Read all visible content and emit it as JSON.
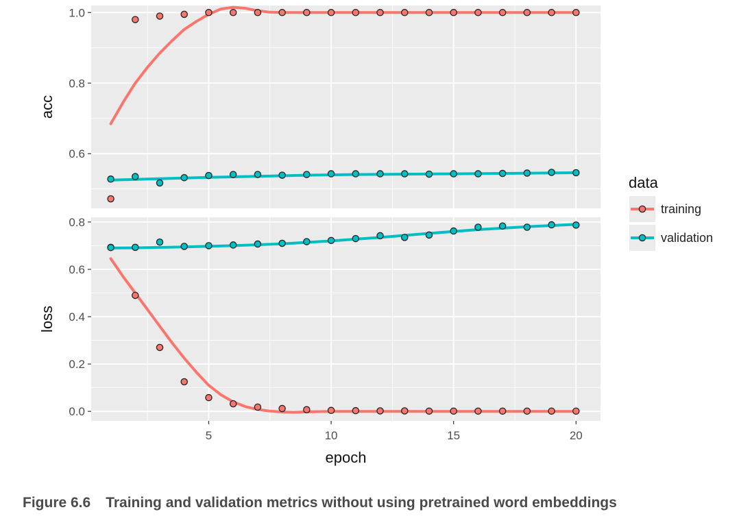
{
  "figure": {
    "caption_number": "Figure 6.6",
    "caption_text": "Training and validation metrics without using pretrained word embeddings"
  },
  "chart_data": {
    "type": "scatter",
    "subtype": "faceted scatter with smoothed trend lines",
    "xlabel": "epoch",
    "xlim": [
      0.2,
      21.0
    ],
    "x_ticks": [
      5,
      10,
      15,
      20
    ],
    "grid": true,
    "legend": {
      "title": "data",
      "placement": "right",
      "entries": [
        "training",
        "validation"
      ]
    },
    "colors": {
      "training": "#F8766D",
      "validation": "#00BFC4",
      "panel_background": "#EBEBEB",
      "grid": "#FFFFFF",
      "point_outline": "#222222"
    },
    "facets": [
      {
        "name": "acc",
        "ylabel": "acc",
        "ylim": [
          0.445,
          1.02
        ],
        "y_ticks": [
          0.6,
          0.8,
          1.0
        ],
        "y_tick_labels": [
          "0.6",
          "0.8",
          "1.0"
        ],
        "series": [
          {
            "name": "training",
            "x": [
              1,
              2,
              3,
              4,
              5,
              6,
              7,
              8,
              9,
              10,
              11,
              12,
              13,
              14,
              15,
              16,
              17,
              18,
              19,
              20
            ],
            "y": [
              0.472,
              0.98,
              0.99,
              0.995,
              1.0,
              1.0,
              1.0,
              1.0,
              1.0,
              1.0,
              1.0,
              1.0,
              1.0,
              1.0,
              1.0,
              1.0,
              1.0,
              1.0,
              1.0,
              1.0
            ],
            "smooth_x": [
              1,
              1.5,
              2,
              2.5,
              3,
              3.5,
              4,
              4.5,
              5,
              5.5,
              6,
              6.5,
              7,
              7.5,
              8,
              9,
              10,
              12,
              14,
              16,
              18,
              20
            ],
            "smooth_y": [
              0.685,
              0.745,
              0.8,
              0.845,
              0.885,
              0.92,
              0.952,
              0.975,
              0.995,
              1.01,
              1.015,
              1.012,
              1.005,
              1.001,
              1.0,
              1.0,
              1.0,
              1.0,
              1.0,
              1.0,
              1.0,
              1.0
            ]
          },
          {
            "name": "validation",
            "x": [
              1,
              2,
              3,
              4,
              5,
              6,
              7,
              8,
              9,
              10,
              11,
              12,
              13,
              14,
              15,
              16,
              17,
              18,
              19,
              20
            ],
            "y": [
              0.528,
              0.535,
              0.517,
              0.532,
              0.538,
              0.541,
              0.541,
              0.539,
              0.541,
              0.543,
              0.543,
              0.543,
              0.543,
              0.542,
              0.543,
              0.543,
              0.544,
              0.545,
              0.547,
              0.546
            ],
            "smooth_x": [
              1,
              3,
              5,
              7,
              9,
              11,
              13,
              15,
              17,
              20
            ],
            "smooth_y": [
              0.525,
              0.529,
              0.533,
              0.536,
              0.539,
              0.541,
              0.542,
              0.543,
              0.544,
              0.546
            ]
          }
        ]
      },
      {
        "name": "loss",
        "ylabel": "loss",
        "ylim": [
          -0.04,
          0.82
        ],
        "y_ticks": [
          0.0,
          0.2,
          0.4,
          0.6,
          0.8
        ],
        "y_tick_labels": [
          "0.0",
          "0.2",
          "0.4",
          "0.6",
          "0.8"
        ],
        "series": [
          {
            "name": "training",
            "x": [
              1,
              2,
              3,
              4,
              5,
              6,
              7,
              8,
              9,
              10,
              11,
              12,
              13,
              14,
              15,
              16,
              17,
              18,
              19,
              20
            ],
            "y": [
              0.693,
              0.49,
              0.27,
              0.125,
              0.058,
              0.032,
              0.018,
              0.012,
              0.007,
              0.004,
              0.003,
              0.002,
              0.002,
              0.001,
              0.001,
              0.001,
              0.001,
              0.001,
              0.001,
              0.001
            ],
            "smooth_x": [
              1,
              1.5,
              2,
              2.5,
              3,
              3.5,
              4,
              4.5,
              5,
              5.5,
              6,
              6.5,
              7,
              7.5,
              8,
              8.5,
              9,
              10,
              12,
              14,
              16,
              18,
              20
            ],
            "smooth_y": [
              0.645,
              0.57,
              0.5,
              0.43,
              0.36,
              0.29,
              0.225,
              0.165,
              0.11,
              0.07,
              0.04,
              0.02,
              0.008,
              0.001,
              -0.003,
              -0.004,
              -0.002,
              0.0,
              0.0,
              0.0,
              0.0,
              0.0,
              0.0
            ]
          },
          {
            "name": "validation",
            "x": [
              1,
              2,
              3,
              4,
              5,
              6,
              7,
              8,
              9,
              10,
              11,
              12,
              13,
              14,
              15,
              16,
              17,
              18,
              19,
              20
            ],
            "y": [
              0.692,
              0.693,
              0.715,
              0.697,
              0.7,
              0.703,
              0.707,
              0.71,
              0.717,
              0.722,
              0.73,
              0.742,
              0.735,
              0.745,
              0.762,
              0.778,
              0.783,
              0.778,
              0.788,
              0.787
            ],
            "smooth_x": [
              1,
              2,
              4,
              6,
              8,
              10,
              12,
              14,
              16,
              18,
              20
            ],
            "smooth_y": [
              0.69,
              0.691,
              0.695,
              0.7,
              0.708,
              0.72,
              0.735,
              0.752,
              0.768,
              0.78,
              0.79
            ]
          }
        ]
      }
    ]
  }
}
